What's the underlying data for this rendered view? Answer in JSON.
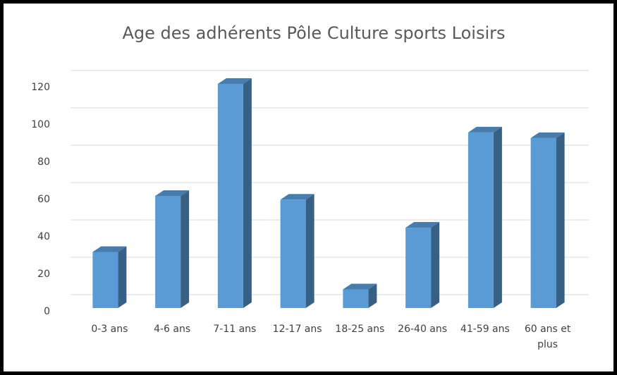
{
  "chart_data": {
    "type": "bar3d",
    "title": "Age des adhérents Pôle Culture sports Loisirs",
    "categories": [
      "0-3 ans",
      "4-6 ans",
      "7-11 ans",
      "12-17 ans",
      "18-25 ans",
      "26-40 ans",
      "41-59 ans",
      "60 ans et plus"
    ],
    "values": [
      30,
      60,
      120,
      58,
      10,
      43,
      94,
      91
    ],
    "color": "#5b9bd5",
    "ylim": [
      0,
      120
    ],
    "yticks": [
      0,
      20,
      40,
      60,
      80,
      100,
      120
    ],
    "grid": true
  }
}
